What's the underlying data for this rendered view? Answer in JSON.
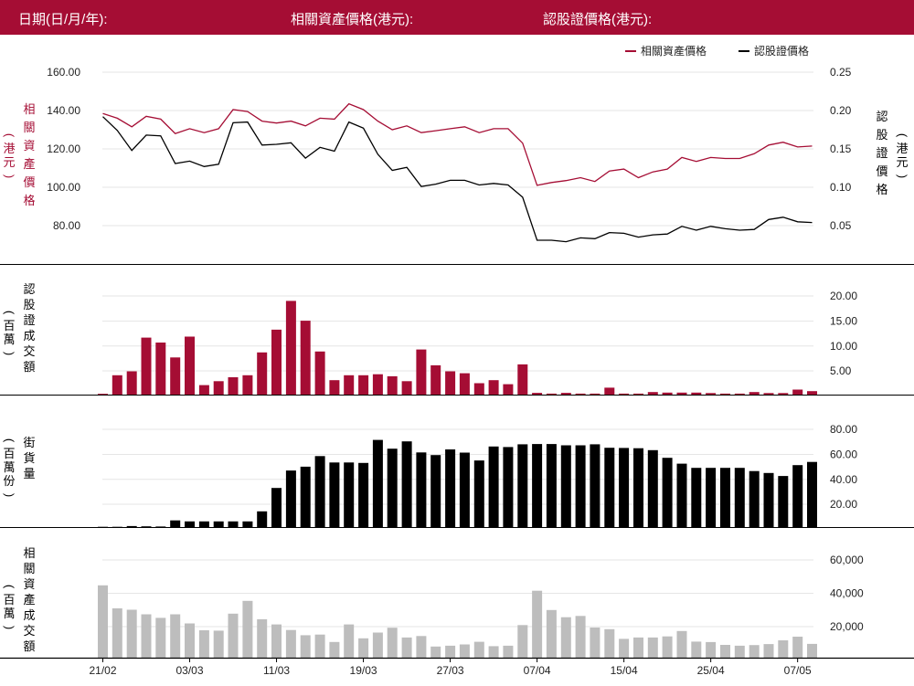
{
  "header": {
    "date_label": "日期(日/月/年):",
    "asset_price_label": "相關資產價格(港元):",
    "warrant_price_label": "認股證價格(港元):"
  },
  "colors": {
    "brand": "#a50d34",
    "warrant_line": "#000000",
    "asset_turnover_bar": "#bdbdbd",
    "grid": "#e6e6e6"
  },
  "chart_data": [
    {
      "type": "line",
      "legend_position": "top-right",
      "grid": true,
      "left_axis": {
        "label": "相關資產價格",
        "unit": "(港元)",
        "ticks": [
          "160.00",
          "140.00",
          "120.00",
          "100.00",
          "80.00"
        ],
        "range": [
          70,
          165
        ]
      },
      "right_axis": {
        "label": "認股證價格",
        "unit": "(港元)",
        "ticks": [
          "0.25",
          "0.20",
          "0.15",
          "0.10",
          "0.05"
        ],
        "range": [
          0.02,
          0.265
        ]
      },
      "series": [
        {
          "name": "相關資產價格",
          "axis": "left",
          "values": [
            138.5,
            136,
            131.5,
            137,
            135.5,
            128,
            130.5,
            128.5,
            130.5,
            140.5,
            139.5,
            134.5,
            133.5,
            134.5,
            132,
            136,
            135.5,
            143.5,
            140.5,
            134.5,
            130,
            132,
            128.5,
            129.5,
            130.5,
            131.5,
            128.5,
            130.5,
            130.5,
            123,
            101,
            102.5,
            103.5,
            105,
            103,
            108.5,
            109.5,
            105,
            108,
            109.5,
            115.5,
            113.5,
            115.5,
            115,
            115,
            117.5,
            122,
            123.5,
            121,
            121.5
          ]
        },
        {
          "name": "認股證價格",
          "axis": "right",
          "values": [
            0.192,
            0.174,
            0.148,
            0.168,
            0.167,
            0.131,
            0.134,
            0.127,
            0.13,
            0.184,
            0.185,
            0.155,
            0.156,
            0.158,
            0.138,
            0.152,
            0.147,
            0.185,
            0.177,
            0.143,
            0.122,
            0.126,
            0.101,
            0.104,
            0.109,
            0.109,
            0.103,
            0.105,
            0.103,
            0.087,
            0.031,
            0.031,
            0.029,
            0.034,
            0.033,
            0.041,
            0.04,
            0.035,
            0.038,
            0.039,
            0.049,
            0.044,
            0.049,
            0.046,
            0.044,
            0.045,
            0.058,
            0.061,
            0.055,
            0.054
          ]
        }
      ]
    },
    {
      "type": "bar",
      "axis_label": "認股證成交額",
      "unit": "(百萬)",
      "ticks": [
        "20.00",
        "15.00",
        "10.00",
        "5.00"
      ],
      "range": [
        0,
        23
      ],
      "values": [
        0.25,
        4,
        4.8,
        11.6,
        10.6,
        7.6,
        11.8,
        2,
        2.8,
        3.6,
        4,
        8.6,
        13.2,
        19,
        15,
        8.8,
        3,
        4,
        4,
        4.2,
        3.8,
        2.8,
        9.2,
        6,
        4.8,
        4.4,
        2.4,
        3,
        2.2,
        6.2,
        0.45,
        0.3,
        0.45,
        0.3,
        0.3,
        1.5,
        0.3,
        0.3,
        0.6,
        0.5,
        0.5,
        0.5,
        0.4,
        0.3,
        0.3,
        0.6,
        0.4,
        0.4,
        1.1,
        0.8
      ]
    },
    {
      "type": "bar",
      "axis_label": "街貨量",
      "unit": "(百萬份)",
      "ticks": [
        "80.00",
        "60.00",
        "40.00",
        "20.00"
      ],
      "range": [
        0,
        85
      ],
      "values": [
        0.6,
        0.6,
        1.2,
        1,
        0.8,
        5.8,
        5,
        5,
        5,
        5,
        5,
        13.2,
        32.2,
        46.4,
        49.6,
        58.2,
        53,
        53,
        52.6,
        71.4,
        64.2,
        70.2,
        61.2,
        59,
        63.6,
        61,
        54.6,
        66,
        65.6,
        67.8,
        68,
        68,
        67,
        67,
        67.8,
        65,
        64.8,
        64.6,
        63,
        56.8,
        52,
        48.6,
        48.6,
        48.6,
        48.6,
        46,
        44.4,
        42,
        50.8,
        53.4
      ]
    },
    {
      "type": "bar",
      "axis_label": "相關資產成交額",
      "unit": "(百萬)",
      "ticks": [
        "60,000",
        "40,000",
        "20,000"
      ],
      "range": [
        0,
        67000
      ],
      "values": [
        44500,
        30400,
        29600,
        26800,
        24600,
        26800,
        21200,
        17000,
        16800,
        27200,
        35000,
        23800,
        20600,
        17200,
        14000,
        14400,
        9900,
        20600,
        12100,
        15600,
        18600,
        12600,
        13500,
        7100,
        7600,
        8400,
        10000,
        7300,
        7600,
        20200,
        41200,
        29400,
        25000,
        25800,
        18700,
        17700,
        11800,
        12600,
        12600,
        13300,
        16600,
        10100,
        9800,
        8100,
        7600,
        8000,
        8600,
        10900,
        13100,
        8700
      ]
    }
  ],
  "x_axis": {
    "labels": [
      {
        "index": 0,
        "text": "21/02"
      },
      {
        "index": 6,
        "text": "03/03"
      },
      {
        "index": 12,
        "text": "11/03"
      },
      {
        "index": 18,
        "text": "19/03"
      },
      {
        "index": 24,
        "text": "27/03"
      },
      {
        "index": 30,
        "text": "07/04"
      },
      {
        "index": 36,
        "text": "15/04"
      },
      {
        "index": 42,
        "text": "25/04"
      },
      {
        "index": 48,
        "text": "07/05"
      }
    ]
  }
}
